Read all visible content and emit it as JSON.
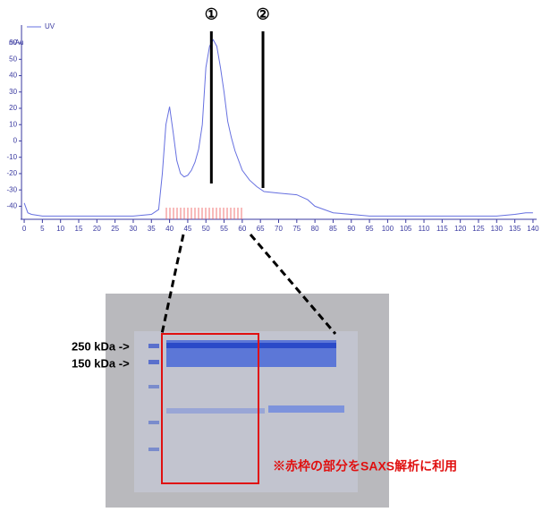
{
  "chart_data": {
    "type": "line",
    "y_label": "mAu",
    "x": [
      0,
      1,
      2,
      5,
      10,
      20,
      30,
      35,
      37,
      38,
      39,
      40,
      41,
      42,
      43,
      44,
      45,
      46,
      47,
      48,
      49,
      50,
      51,
      52,
      53,
      54,
      55,
      56,
      57,
      58,
      60,
      62,
      64,
      66,
      70,
      75,
      78,
      80,
      85,
      90,
      95,
      100,
      110,
      120,
      130,
      135,
      138,
      140
    ],
    "series": [
      {
        "name": "UV",
        "color": "#6670e0",
        "values": [
          -38,
          -44,
          -45,
          -46,
          -46,
          -46,
          -46,
          -45,
          -42,
          -20,
          10,
          21,
          5,
          -12,
          -20,
          -22,
          -21,
          -18,
          -13,
          -5,
          10,
          45,
          58,
          62,
          58,
          45,
          30,
          12,
          2,
          -6,
          -18,
          -24,
          -28,
          -31,
          -32,
          -33,
          -36,
          -40,
          -44,
          -45,
          -46,
          -46,
          -46,
          -46,
          -46,
          -45,
          -44,
          -44
        ]
      }
    ],
    "xlim": [
      -1,
      141
    ],
    "ylim": [
      -48,
      71
    ],
    "xticks": [
      0,
      5,
      10,
      15,
      20,
      25,
      30,
      35,
      40,
      45,
      50,
      55,
      60,
      65,
      70,
      75,
      80,
      85,
      90,
      95,
      100,
      105,
      110,
      115,
      120,
      125,
      130,
      135,
      140
    ],
    "yticks": [
      60,
      50,
      40,
      30,
      20,
      10,
      0,
      -10,
      -20,
      -30,
      -40
    ],
    "annotations": [
      {
        "text": "①",
        "x": 51.5
      },
      {
        "text": "②",
        "x": 65.7
      }
    ]
  },
  "gel": {
    "markers": [
      "250 kDa ->",
      "150 kDa ->"
    ],
    "note": "※赤枠の部分をSAXS解析に利用"
  }
}
